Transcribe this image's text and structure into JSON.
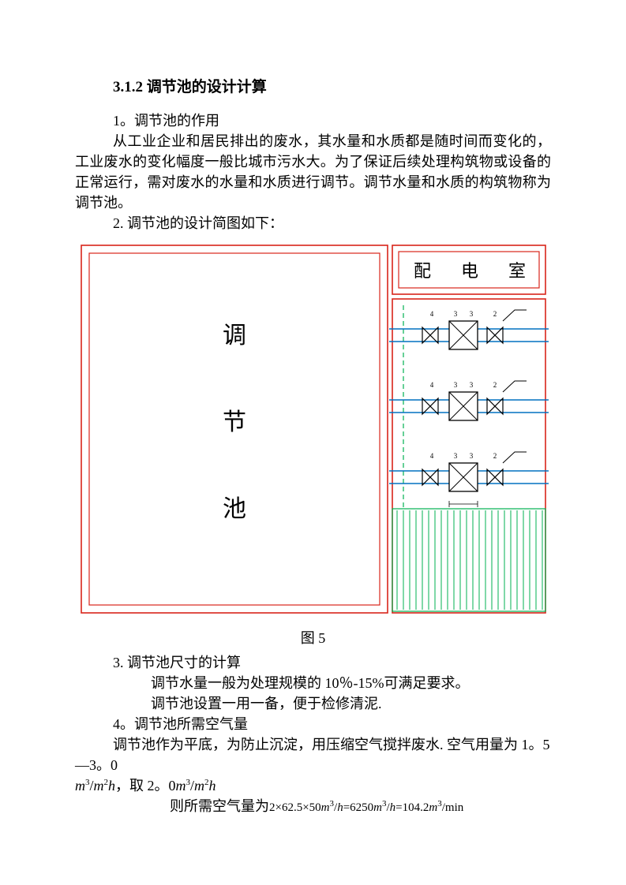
{
  "heading": "3.1.2 调节池的设计计算",
  "p1": "1。调节池的作用",
  "p2": "从工业企业和居民排出的废水，其水量和水质都是随时间而变化的，工业废水的变化幅度一般比城市污水大。为了保证后续处理构筑物或设备的正常运行，需对废水的水量和水质进行调节。调节水量和水质的构筑物称为调节池。",
  "p3": "2. 调节池的设计简图如下：",
  "figcap": "图 5",
  "p4": "3. 调节池尺寸的计算",
  "p5": "调节水量一般为处理规模的 10％-15%可满足要求。",
  "p6": "调节池设置一用一备，便于检修清泥.",
  "p7": "4。调节池所需空气量",
  "p8": "调节池作为平底，为防止沉淀，用压缩空气搅拌废水. 空气用量为 1。5—3。0",
  "p8b": "，取 2。0",
  "p9": "则所需空气量为",
  "diagram": {
    "tank_label": [
      "调",
      "节",
      "池"
    ],
    "room_label": [
      "配",
      "电",
      "室"
    ],
    "pump_labels": [
      "4",
      "3",
      "3",
      "2"
    ],
    "colors": {
      "red": "#d8251a",
      "green": "#00b050",
      "blue": "#0070c0",
      "black": "#000000",
      "green_dash": "#00b050"
    },
    "stroke_w": {
      "outer": 1.6,
      "inner": 1.2,
      "pipe": 1.4,
      "hatch": 1.0
    }
  },
  "math": {
    "unit1": "m³/m²h",
    "unit2": "m³/m²h",
    "eq_parts": [
      "2×62.5×50",
      "m³/h",
      "=6250",
      "m³/h",
      "=104.2",
      "m³/min"
    ]
  }
}
